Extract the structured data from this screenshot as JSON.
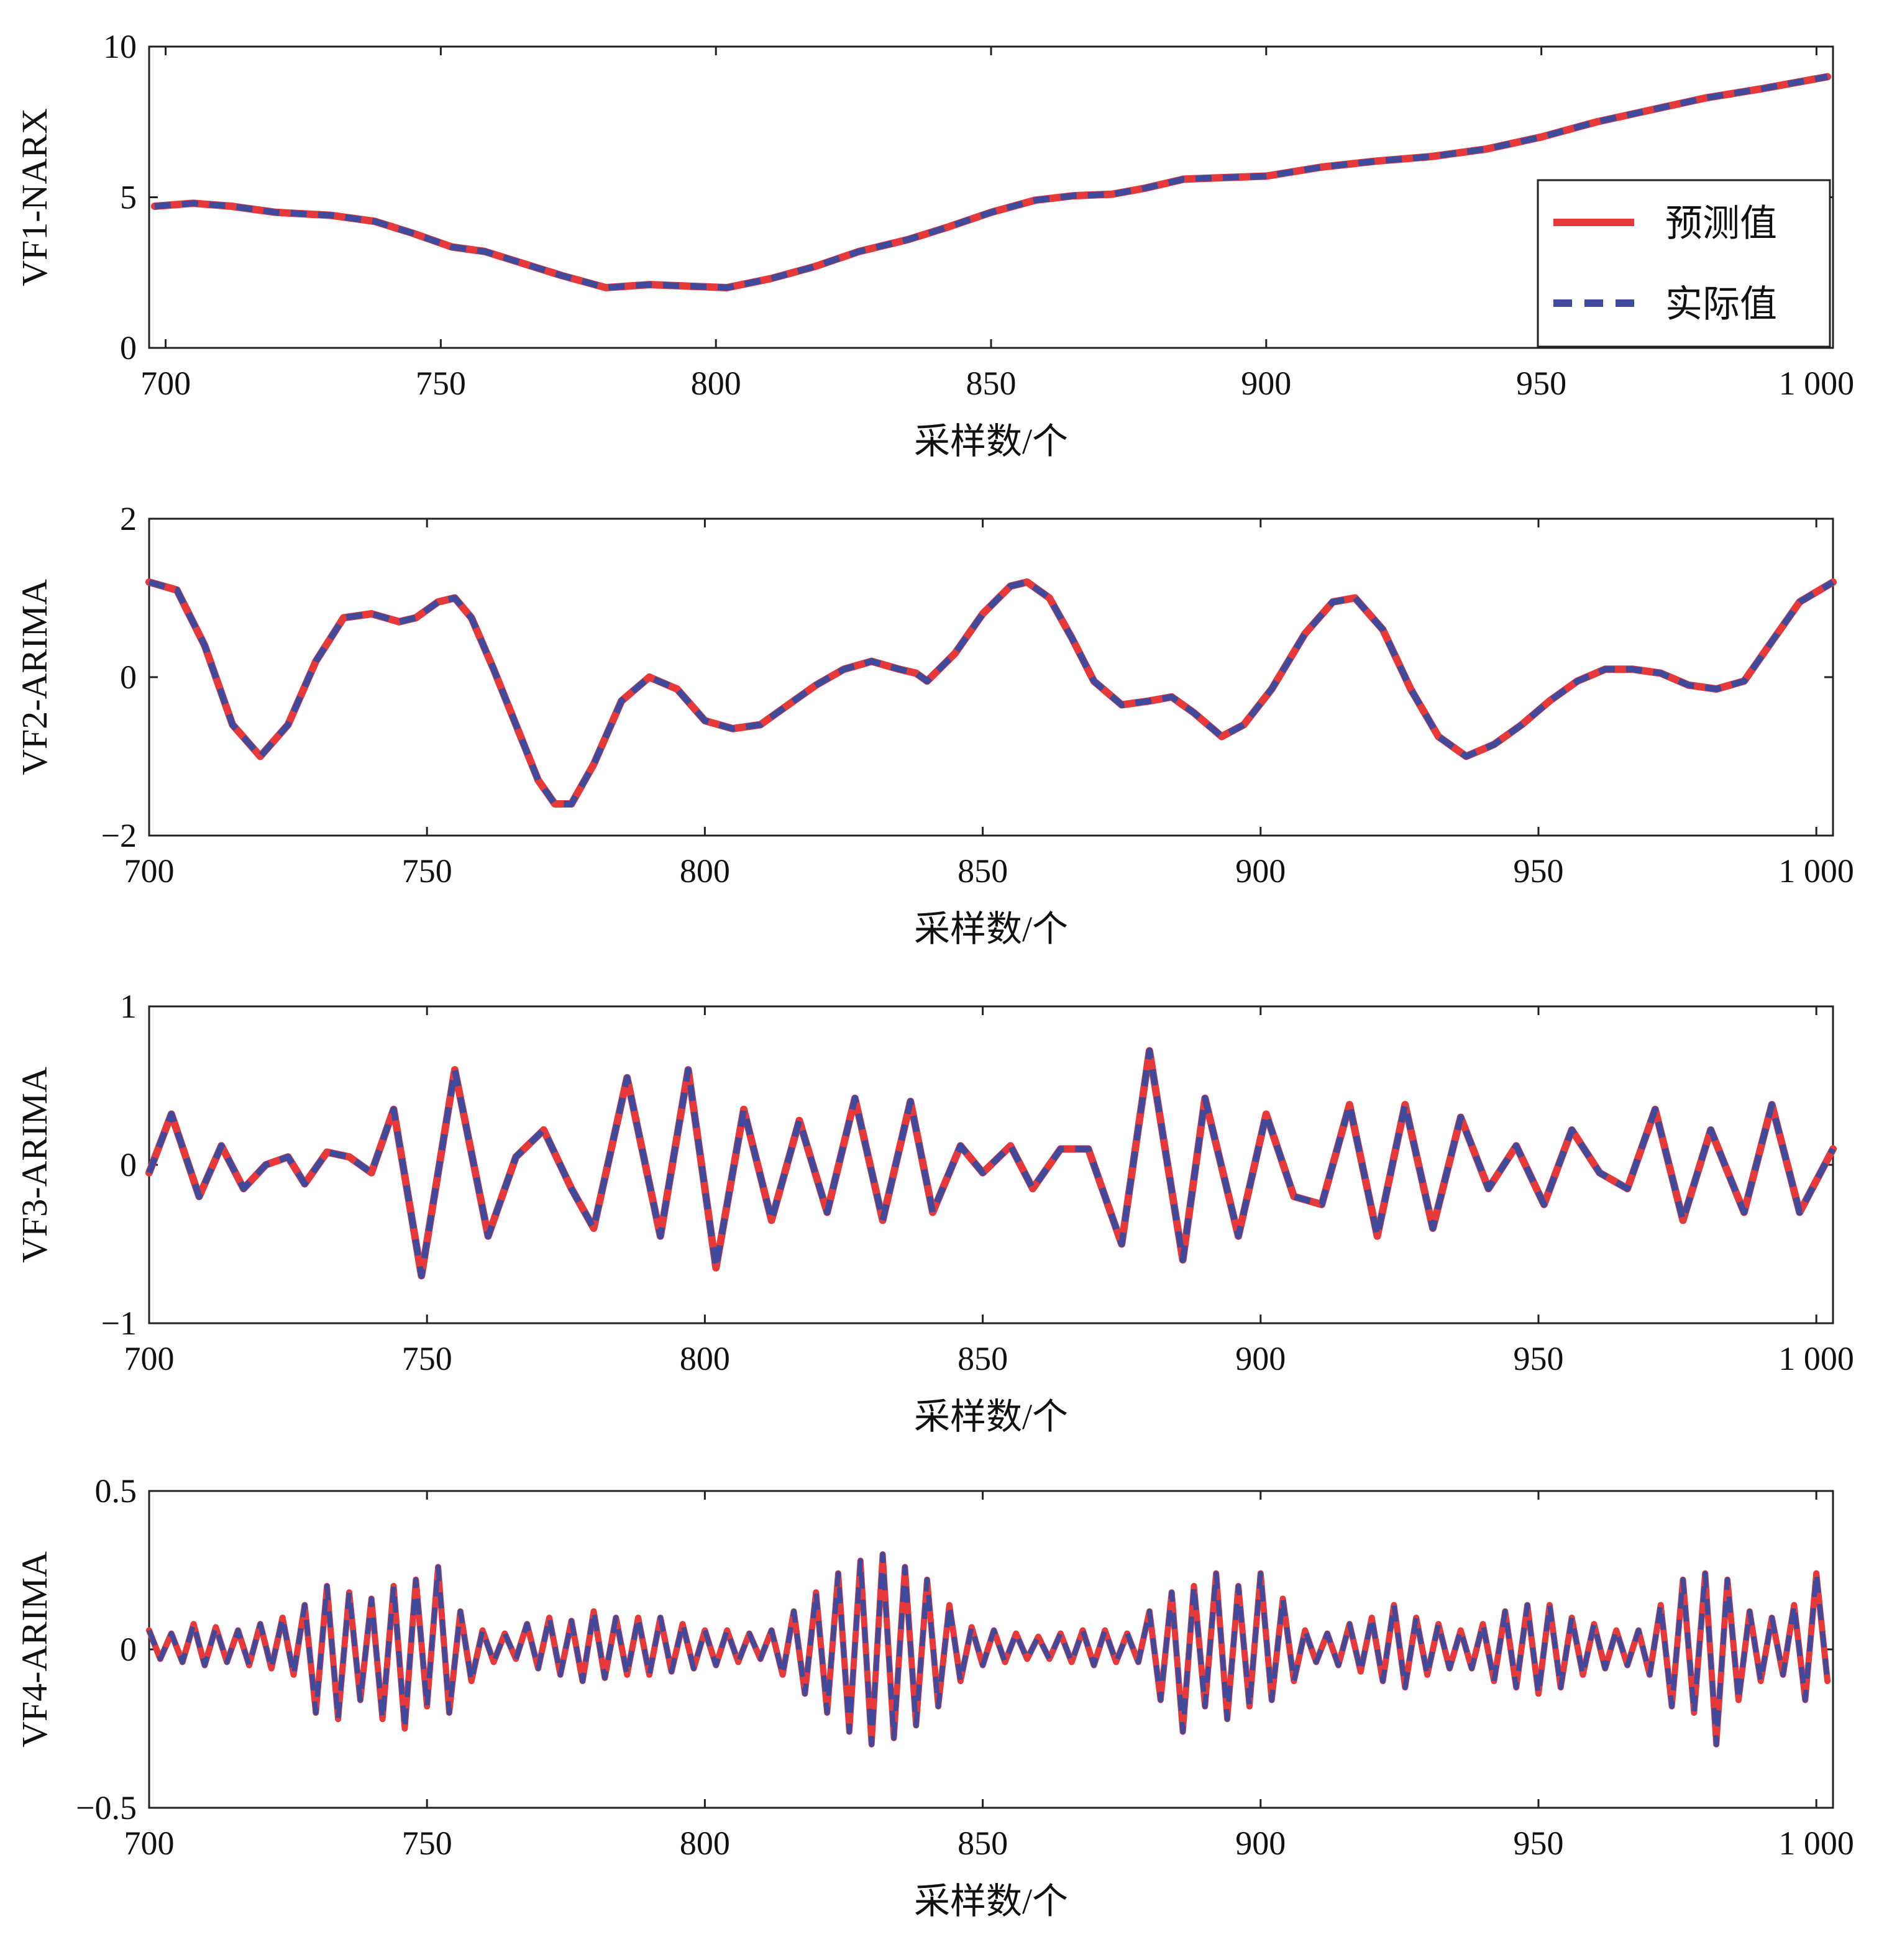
{
  "colors": {
    "predicted": "#e8393a",
    "actual": "#3f4a9c"
  },
  "legend": {
    "predicted": "预测值",
    "actual": "实际值"
  },
  "chart_data": [
    {
      "type": "line",
      "ylabel": "VF1-NARX",
      "xlabel": "采样数/个",
      "xlim": [
        697,
        1003
      ],
      "ylim": [
        0,
        10
      ],
      "xticks": [
        700,
        750,
        800,
        850,
        900,
        950,
        1000
      ],
      "xtick_labels": [
        "700",
        "750",
        "800",
        "850",
        "900",
        "950",
        "1 000"
      ],
      "yticks": [
        0,
        5,
        10
      ],
      "ytick_labels": [
        "0",
        "5",
        "10"
      ],
      "x": [
        698,
        705,
        712,
        720,
        730,
        738,
        745,
        752,
        758,
        765,
        772,
        780,
        788,
        795,
        802,
        810,
        818,
        826,
        835,
        842,
        850,
        858,
        865,
        872,
        878,
        885,
        892,
        900,
        910,
        920,
        930,
        940,
        950,
        960,
        970,
        980,
        990,
        1002
      ],
      "series": [
        {
          "name": "预测值",
          "values": [
            4.7,
            4.8,
            4.7,
            4.5,
            4.4,
            4.2,
            3.8,
            3.35,
            3.2,
            2.8,
            2.4,
            2.0,
            2.1,
            2.05,
            2.0,
            2.3,
            2.7,
            3.2,
            3.6,
            4.0,
            4.5,
            4.9,
            5.05,
            5.1,
            5.3,
            5.6,
            5.65,
            5.7,
            6.0,
            6.2,
            6.35,
            6.6,
            7.0,
            7.5,
            7.9,
            8.3,
            8.6,
            9.0
          ]
        },
        {
          "name": "实际值",
          "values": [
            4.7,
            4.8,
            4.7,
            4.5,
            4.4,
            4.2,
            3.8,
            3.35,
            3.2,
            2.8,
            2.4,
            2.0,
            2.1,
            2.05,
            2.0,
            2.3,
            2.7,
            3.2,
            3.6,
            4.0,
            4.5,
            4.9,
            5.05,
            5.1,
            5.3,
            5.6,
            5.65,
            5.7,
            6.0,
            6.2,
            6.35,
            6.6,
            7.0,
            7.5,
            7.9,
            8.3,
            8.6,
            9.0
          ]
        }
      ]
    },
    {
      "type": "line",
      "ylabel": "VF2-ARIMA",
      "xlabel": "采样数/个",
      "xlim": [
        700,
        1003
      ],
      "ylim": [
        -2,
        2
      ],
      "xticks": [
        700,
        750,
        800,
        850,
        900,
        950,
        1000
      ],
      "xtick_labels": [
        "700",
        "750",
        "800",
        "850",
        "900",
        "950",
        "1 000"
      ],
      "yticks": [
        -2,
        0,
        2
      ],
      "ytick_labels": [
        "−2",
        "0",
        "2"
      ],
      "x": [
        700,
        705,
        710,
        715,
        720,
        725,
        730,
        735,
        740,
        745,
        748,
        752,
        755,
        758,
        762,
        766,
        770,
        773,
        776,
        780,
        785,
        790,
        795,
        800,
        805,
        810,
        815,
        820,
        825,
        830,
        835,
        838,
        840,
        845,
        850,
        855,
        858,
        862,
        866,
        870,
        875,
        880,
        884,
        888,
        893,
        897,
        902,
        908,
        913,
        917,
        922,
        927,
        932,
        937,
        942,
        947,
        952,
        957,
        962,
        967,
        972,
        977,
        982,
        987,
        992,
        997,
        1003
      ],
      "series": [
        {
          "name": "预测值",
          "values": [
            1.2,
            1.1,
            0.4,
            -0.6,
            -1.0,
            -0.6,
            0.2,
            0.75,
            0.8,
            0.7,
            0.75,
            0.95,
            1.0,
            0.75,
            0.1,
            -0.6,
            -1.3,
            -1.6,
            -1.6,
            -1.1,
            -0.3,
            0.0,
            -0.15,
            -0.55,
            -0.65,
            -0.6,
            -0.35,
            -0.1,
            0.1,
            0.2,
            0.1,
            0.05,
            -0.05,
            0.3,
            0.8,
            1.15,
            1.2,
            1.0,
            0.5,
            -0.05,
            -0.35,
            -0.3,
            -0.25,
            -0.45,
            -0.75,
            -0.6,
            -0.15,
            0.55,
            0.95,
            1.0,
            0.6,
            -0.15,
            -0.75,
            -1.0,
            -0.85,
            -0.6,
            -0.3,
            -0.05,
            0.1,
            0.1,
            0.05,
            -0.1,
            -0.15,
            -0.05,
            0.45,
            0.95,
            1.2
          ]
        },
        {
          "name": "实际值",
          "values": [
            1.2,
            1.1,
            0.4,
            -0.6,
            -1.0,
            -0.6,
            0.2,
            0.75,
            0.8,
            0.7,
            0.75,
            0.95,
            1.0,
            0.75,
            0.1,
            -0.6,
            -1.3,
            -1.6,
            -1.6,
            -1.1,
            -0.3,
            0.0,
            -0.15,
            -0.55,
            -0.65,
            -0.6,
            -0.35,
            -0.1,
            0.1,
            0.2,
            0.1,
            0.05,
            -0.05,
            0.3,
            0.8,
            1.15,
            1.2,
            1.0,
            0.5,
            -0.05,
            -0.35,
            -0.3,
            -0.25,
            -0.45,
            -0.75,
            -0.6,
            -0.15,
            0.55,
            0.95,
            1.0,
            0.6,
            -0.15,
            -0.75,
            -1.0,
            -0.85,
            -0.6,
            -0.3,
            -0.05,
            0.1,
            0.1,
            0.05,
            -0.1,
            -0.15,
            -0.05,
            0.45,
            0.95,
            1.2
          ]
        }
      ]
    },
    {
      "type": "line",
      "ylabel": "VF3-ARIMA",
      "xlabel": "采样数/个",
      "xlim": [
        700,
        1003
      ],
      "ylim": [
        -1,
        1
      ],
      "xticks": [
        700,
        750,
        800,
        850,
        900,
        950,
        1000
      ],
      "xtick_labels": [
        "700",
        "750",
        "800",
        "850",
        "900",
        "950",
        "1 000"
      ],
      "yticks": [
        -1,
        0,
        1
      ],
      "ytick_labels": [
        "−1",
        "0",
        "1"
      ],
      "x": [
        700,
        704,
        709,
        713,
        717,
        721,
        725,
        728,
        732,
        736,
        740,
        744,
        749,
        755,
        761,
        766,
        771,
        776,
        780,
        786,
        792,
        797,
        802,
        807,
        812,
        817,
        822,
        827,
        832,
        837,
        841,
        846,
        850,
        855,
        859,
        864,
        869,
        875,
        880,
        886,
        890,
        896,
        901,
        906,
        911,
        916,
        921,
        926,
        931,
        936,
        941,
        946,
        951,
        956,
        961,
        966,
        971,
        976,
        981,
        987,
        992,
        997,
        1003
      ],
      "series": [
        {
          "name": "预测值",
          "values": [
            -0.05,
            0.32,
            -0.2,
            0.12,
            -0.15,
            0.0,
            0.05,
            -0.12,
            0.08,
            0.05,
            -0.05,
            0.35,
            -0.7,
            0.6,
            -0.45,
            0.05,
            0.22,
            -0.15,
            -0.4,
            0.55,
            -0.45,
            0.6,
            -0.65,
            0.35,
            -0.35,
            0.28,
            -0.3,
            0.42,
            -0.35,
            0.4,
            -0.3,
            0.12,
            -0.05,
            0.12,
            -0.15,
            0.1,
            0.1,
            -0.5,
            0.72,
            -0.6,
            0.42,
            -0.45,
            0.32,
            -0.2,
            -0.25,
            0.38,
            -0.45,
            0.38,
            -0.4,
            0.3,
            -0.15,
            0.12,
            -0.25,
            0.22,
            -0.05,
            -0.15,
            0.35,
            -0.35,
            0.22,
            -0.3,
            0.38,
            -0.3,
            0.1
          ]
        },
        {
          "name": "实际值",
          "values": [
            -0.05,
            0.32,
            -0.2,
            0.12,
            -0.15,
            0.0,
            0.05,
            -0.12,
            0.08,
            0.05,
            -0.05,
            0.35,
            -0.7,
            0.6,
            -0.45,
            0.05,
            0.22,
            -0.15,
            -0.4,
            0.55,
            -0.45,
            0.6,
            -0.65,
            0.35,
            -0.35,
            0.28,
            -0.3,
            0.42,
            -0.35,
            0.4,
            -0.3,
            0.12,
            -0.05,
            0.12,
            -0.15,
            0.1,
            0.1,
            -0.5,
            0.72,
            -0.6,
            0.42,
            -0.45,
            0.32,
            -0.2,
            -0.25,
            0.38,
            -0.45,
            0.38,
            -0.4,
            0.3,
            -0.15,
            0.12,
            -0.25,
            0.22,
            -0.05,
            -0.15,
            0.35,
            -0.35,
            0.22,
            -0.3,
            0.38,
            -0.3,
            0.1
          ]
        }
      ]
    },
    {
      "type": "line",
      "ylabel": "VF4-ARIMA",
      "xlabel": "采样数/个",
      "xlim": [
        700,
        1003
      ],
      "ylim": [
        -0.5,
        0.5
      ],
      "xticks": [
        700,
        750,
        800,
        850,
        900,
        950,
        1000
      ],
      "xtick_labels": [
        "700",
        "750",
        "800",
        "850",
        "900",
        "950",
        "1 000"
      ],
      "yticks": [
        -0.5,
        0,
        0.5
      ],
      "ytick_labels": [
        "−0.5",
        "0",
        "0.5"
      ],
      "x": [
        700,
        702,
        704,
        706,
        708,
        710,
        712,
        714,
        716,
        718,
        720,
        722,
        724,
        726,
        728,
        730,
        732,
        734,
        736,
        738,
        740,
        742,
        744,
        746,
        748,
        750,
        752,
        754,
        756,
        758,
        760,
        762,
        764,
        766,
        768,
        770,
        772,
        774,
        776,
        778,
        780,
        782,
        784,
        786,
        788,
        790,
        792,
        794,
        796,
        798,
        800,
        802,
        804,
        806,
        808,
        810,
        812,
        814,
        816,
        818,
        820,
        822,
        824,
        826,
        828,
        830,
        832,
        834,
        836,
        838,
        840,
        842,
        844,
        846,
        848,
        850,
        852,
        854,
        856,
        858,
        860,
        862,
        864,
        866,
        868,
        870,
        872,
        874,
        876,
        878,
        880,
        882,
        884,
        886,
        888,
        890,
        892,
        894,
        896,
        898,
        900,
        902,
        904,
        906,
        908,
        910,
        912,
        914,
        916,
        918,
        920,
        922,
        924,
        926,
        928,
        930,
        932,
        934,
        936,
        938,
        940,
        942,
        944,
        946,
        948,
        950,
        952,
        954,
        956,
        958,
        960,
        962,
        964,
        966,
        968,
        970,
        972,
        974,
        976,
        978,
        980,
        982,
        984,
        986,
        988,
        990,
        992,
        994,
        996,
        998,
        1000,
        1002
      ],
      "series": [
        {
          "name": "预测值",
          "values": [
            0.06,
            -0.03,
            0.05,
            -0.04,
            0.08,
            -0.05,
            0.07,
            -0.04,
            0.06,
            -0.05,
            0.08,
            -0.06,
            0.1,
            -0.08,
            0.14,
            -0.2,
            0.2,
            -0.22,
            0.18,
            -0.16,
            0.16,
            -0.22,
            0.2,
            -0.25,
            0.22,
            -0.18,
            0.26,
            -0.2,
            0.12,
            -0.1,
            0.06,
            -0.04,
            0.05,
            -0.03,
            0.08,
            -0.06,
            0.1,
            -0.08,
            0.09,
            -0.1,
            0.12,
            -0.09,
            0.1,
            -0.08,
            0.1,
            -0.08,
            0.1,
            -0.07,
            0.08,
            -0.06,
            0.06,
            -0.05,
            0.06,
            -0.04,
            0.05,
            -0.03,
            0.06,
            -0.08,
            0.12,
            -0.14,
            0.18,
            -0.2,
            0.24,
            -0.26,
            0.28,
            -0.3,
            0.3,
            -0.28,
            0.26,
            -0.24,
            0.22,
            -0.18,
            0.14,
            -0.1,
            0.07,
            -0.05,
            0.06,
            -0.04,
            0.05,
            -0.03,
            0.04,
            -0.03,
            0.05,
            -0.04,
            0.06,
            -0.05,
            0.06,
            -0.04,
            0.05,
            -0.04,
            0.12,
            -0.16,
            0.18,
            -0.26,
            0.2,
            -0.18,
            0.24,
            -0.22,
            0.2,
            -0.18,
            0.24,
            -0.16,
            0.16,
            -0.1,
            0.06,
            -0.04,
            0.05,
            -0.05,
            0.08,
            -0.07,
            0.1,
            -0.1,
            0.14,
            -0.12,
            0.1,
            -0.08,
            0.08,
            -0.06,
            0.06,
            -0.06,
            0.08,
            -0.1,
            0.12,
            -0.12,
            0.14,
            -0.14,
            0.14,
            -0.12,
            0.1,
            -0.08,
            0.08,
            -0.06,
            0.06,
            -0.05,
            0.06,
            -0.08,
            0.14,
            -0.18,
            0.22,
            -0.2,
            0.24,
            -0.3,
            0.22,
            -0.16,
            0.12,
            -0.1,
            0.1,
            -0.08,
            0.14,
            -0.16,
            0.24,
            -0.1
          ]
        },
        {
          "name": "实际值",
          "values": [
            0.06,
            -0.03,
            0.05,
            -0.04,
            0.08,
            -0.05,
            0.07,
            -0.04,
            0.06,
            -0.05,
            0.08,
            -0.06,
            0.1,
            -0.08,
            0.14,
            -0.2,
            0.2,
            -0.22,
            0.18,
            -0.16,
            0.16,
            -0.22,
            0.2,
            -0.25,
            0.22,
            -0.18,
            0.26,
            -0.2,
            0.12,
            -0.1,
            0.06,
            -0.04,
            0.05,
            -0.03,
            0.08,
            -0.06,
            0.1,
            -0.08,
            0.09,
            -0.1,
            0.12,
            -0.09,
            0.1,
            -0.08,
            0.1,
            -0.08,
            0.1,
            -0.07,
            0.08,
            -0.06,
            0.06,
            -0.05,
            0.06,
            -0.04,
            0.05,
            -0.03,
            0.06,
            -0.08,
            0.12,
            -0.14,
            0.18,
            -0.2,
            0.24,
            -0.26,
            0.28,
            -0.3,
            0.3,
            -0.28,
            0.26,
            -0.24,
            0.22,
            -0.18,
            0.14,
            -0.1,
            0.07,
            -0.05,
            0.06,
            -0.04,
            0.05,
            -0.03,
            0.04,
            -0.03,
            0.05,
            -0.04,
            0.06,
            -0.05,
            0.06,
            -0.04,
            0.05,
            -0.04,
            0.12,
            -0.16,
            0.18,
            -0.26,
            0.2,
            -0.18,
            0.24,
            -0.22,
            0.2,
            -0.18,
            0.24,
            -0.16,
            0.16,
            -0.1,
            0.06,
            -0.04,
            0.05,
            -0.05,
            0.08,
            -0.07,
            0.1,
            -0.1,
            0.14,
            -0.12,
            0.1,
            -0.08,
            0.08,
            -0.06,
            0.06,
            -0.06,
            0.08,
            -0.1,
            0.12,
            -0.12,
            0.14,
            -0.14,
            0.14,
            -0.12,
            0.1,
            -0.08,
            0.08,
            -0.06,
            0.06,
            -0.05,
            0.06,
            -0.08,
            0.14,
            -0.18,
            0.22,
            -0.2,
            0.24,
            -0.3,
            0.22,
            -0.16,
            0.12,
            -0.1,
            0.1,
            -0.08,
            0.14,
            -0.16,
            0.24,
            -0.1
          ]
        }
      ]
    }
  ]
}
